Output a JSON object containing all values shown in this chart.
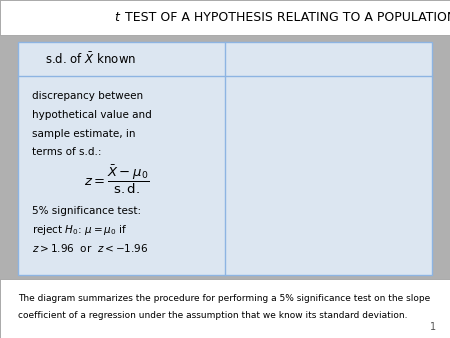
{
  "title_italic": "t",
  "title_rest": " TEST OF A HYPOTHESIS RELATING TO A POPULATION MEAN",
  "bg_color": "#b0b0b0",
  "table_bg": "#dce6f1",
  "table_border": "#8db4e2",
  "white_bg": "#ffffff",
  "header_text": "s.d. of $\\bar{X}$ known",
  "body_line1": "discrepancy between",
  "body_line2": "hypothetical value and",
  "body_line3": "sample estimate, in",
  "body_line4": "terms of s.d.:",
  "formula": "$z = \\dfrac{\\bar{X} - \\mu_0}{\\mathrm{s.d.}}$",
  "sig_line1": "5% significance test:",
  "sig_line2": "reject $H_0$: $\\mu = \\mu_0$ if",
  "sig_line3": "$z > 1.96$  or  $z < -1.96$",
  "footer_line1": "The diagram summarizes the procedure for performing a 5% significance test on the slope",
  "footer_line2": "coefficient of a regression under the assumption that we know its standard deviation.",
  "page_num": "1"
}
